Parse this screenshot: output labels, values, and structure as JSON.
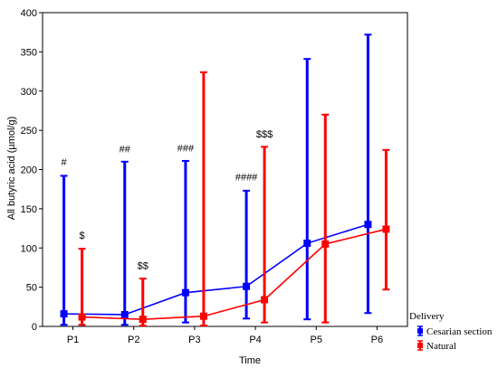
{
  "chart_data": {
    "type": "line",
    "xlabel": "Time",
    "ylabel": "All butyric acid (µmol/g)",
    "categories": [
      "P1",
      "P2",
      "P3",
      "P4",
      "P5",
      "P6"
    ],
    "ylim": [
      0,
      400
    ],
    "yticks": [
      0,
      50,
      100,
      150,
      200,
      250,
      300,
      350,
      400
    ],
    "grid": false,
    "legend_title": "Delivery",
    "legend_position": "bottom-right-outside",
    "series": [
      {
        "name": "Cesarian section",
        "color": "#0000ff",
        "marker": "square",
        "values": [
          16,
          15,
          43,
          51,
          106,
          130
        ],
        "error_low": [
          2,
          2,
          5,
          10,
          9,
          17
        ],
        "error_high": [
          192,
          210,
          211,
          173,
          341,
          372
        ]
      },
      {
        "name": "Natural",
        "color": "#ff0000",
        "marker": "square",
        "values": [
          12,
          9,
          13,
          34,
          105,
          124
        ],
        "error_low": [
          2,
          1,
          1,
          5,
          5,
          47
        ],
        "error_high": [
          99,
          61,
          324,
          229,
          270,
          225
        ]
      }
    ],
    "annotations": [
      {
        "text": "#",
        "x": "P1",
        "y": 205
      },
      {
        "text": "$",
        "x": "P1",
        "y": 112
      },
      {
        "text": "##",
        "x": "P2",
        "y": 222
      },
      {
        "text": "$$",
        "x": "P2",
        "y": 73
      },
      {
        "text": "###",
        "x": "P3",
        "y": 223
      },
      {
        "text": "####",
        "x": "P4",
        "y": 186
      },
      {
        "text": "$$$",
        "x": "P4",
        "y": 241
      }
    ]
  }
}
